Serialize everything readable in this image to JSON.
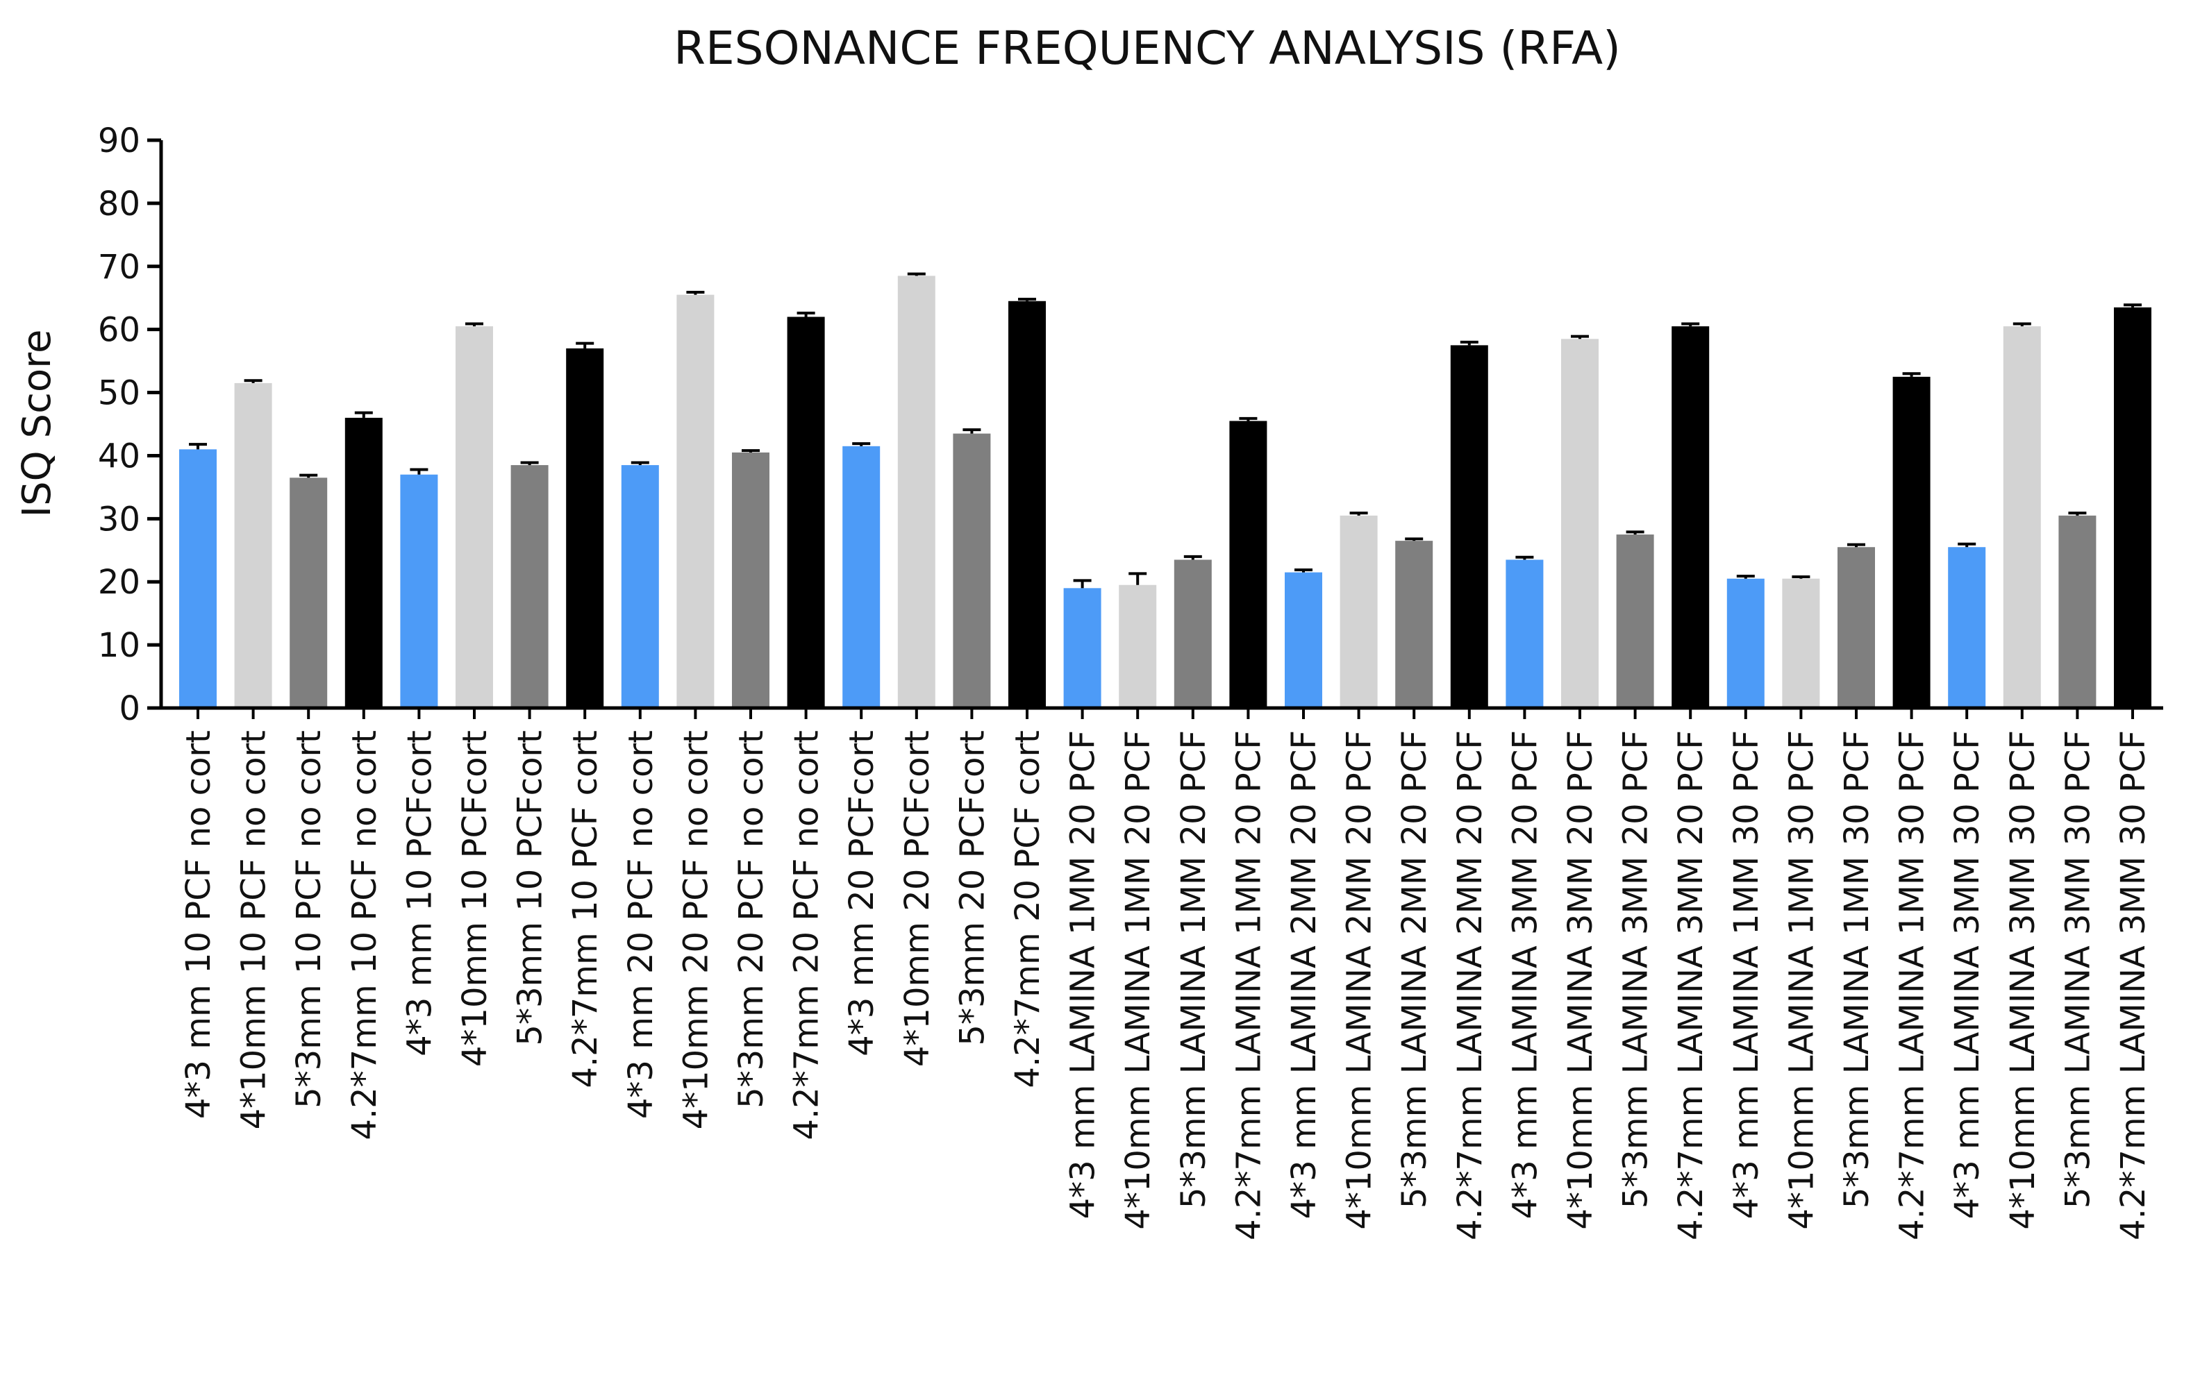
{
  "chart_data": {
    "type": "bar",
    "title": "RESONANCE FREQUENCY ANALYSIS (RFA)",
    "xlabel": "",
    "ylabel": "ISQ Score",
    "ylim": [
      0,
      90
    ],
    "yticks": [
      0,
      10,
      20,
      30,
      40,
      50,
      60,
      70,
      80,
      90
    ],
    "grid": false,
    "legend": "none",
    "colors": {
      "blue": "#4d9bf7",
      "light_gray": "#d3d3d3",
      "dark_gray": "#7f7f7f",
      "black": "#000000",
      "axis": "#000000"
    },
    "categories": [
      "4*3 mm 10 PCF no cort",
      "4*10mm 10 PCF no cort",
      "5*3mm 10 PCF no cort",
      "4.2*7mm 10 PCF no cort",
      "4*3 mm 10 PCFcort",
      "4*10mm 10 PCFcort",
      "5*3mm 10 PCFcort",
      "4.2*7mm 10 PCF cort",
      "4*3 mm 20 PCF no cort",
      "4*10mm 20 PCF no cort",
      "5*3mm 20 PCF no cort",
      "4.2*7mm 20 PCF no cort",
      "4*3 mm 20 PCFcort",
      "4*10mm 20 PCFcort",
      "5*3mm 20 PCFcort",
      "4.2*7mm 20 PCF cort",
      "4*3 mm LAMINA 1MM 20 PCF",
      "4*10mm LAMINA 1MM 20 PCF",
      "5*3mm LAMINA 1MM 20 PCF",
      "4.2*7mm LAMINA 1MM 20 PCF",
      "4*3 mm LAMINA 2MM 20 PCF",
      "4*10mm LAMINA 2MM 20 PCF",
      "5*3mm LAMINA 2MM 20 PCF",
      "4.2*7mm LAMINA 2MM 20 PCF",
      "4*3 mm LAMINA 3MM 20 PCF",
      "4*10mm LAMINA 3MM 20 PCF",
      "5*3mm LAMINA 3MM 20 PCF",
      "4.2*7mm LAMINA 3MM 20 PCF",
      "4*3 mm LAMINA 1MM 30 PCF",
      "4*10mm LAMINA 1MM 30 PCF",
      "5*3mm LAMINA 1MM 30 PCF",
      "4.2*7mm LAMINA 1MM 30 PCF",
      "4*3 mm LAMINA 3MM 30 PCF",
      "4*10mm LAMINA 3MM 30 PCF",
      "5*3mm LAMINA 3MM 30 PCF",
      "4.2*7mm LAMINA 3MM 30 PCF"
    ],
    "values": [
      41,
      51.5,
      36.5,
      46,
      37,
      60.5,
      38.5,
      57,
      38.5,
      65.5,
      40.5,
      62,
      41.5,
      68.5,
      43.5,
      64.5,
      19,
      19.5,
      23.5,
      45.5,
      21.5,
      30.5,
      26.5,
      57.5,
      23.5,
      58.5,
      27.5,
      60.5,
      20.5,
      20.5,
      25.5,
      52.5,
      25.5,
      60.5,
      30.5,
      63.5
    ],
    "errors": [
      0.8,
      0.4,
      0.4,
      0.8,
      0.8,
      0.4,
      0.4,
      0.8,
      0.4,
      0.4,
      0.3,
      0.6,
      0.4,
      0.3,
      0.6,
      0.3,
      1.2,
      1.8,
      0.5,
      0.4,
      0.4,
      0.4,
      0.3,
      0.5,
      0.4,
      0.4,
      0.4,
      0.4,
      0.4,
      0.3,
      0.4,
      0.5,
      0.5,
      0.4,
      0.4,
      0.4
    ],
    "bar_colors": [
      "blue",
      "light_gray",
      "dark_gray",
      "black",
      "blue",
      "light_gray",
      "dark_gray",
      "black",
      "blue",
      "light_gray",
      "dark_gray",
      "black",
      "blue",
      "light_gray",
      "dark_gray",
      "black",
      "blue",
      "light_gray",
      "dark_gray",
      "black",
      "blue",
      "light_gray",
      "dark_gray",
      "black",
      "blue",
      "light_gray",
      "dark_gray",
      "black",
      "blue",
      "light_gray",
      "dark_gray",
      "black",
      "blue",
      "light_gray",
      "dark_gray",
      "black"
    ]
  }
}
